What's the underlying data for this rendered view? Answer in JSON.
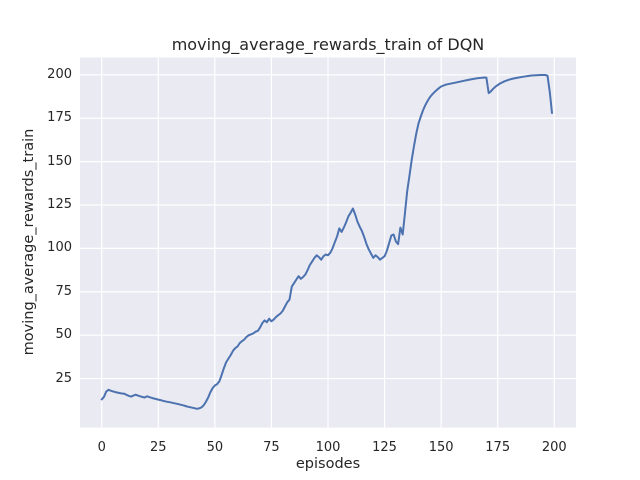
{
  "chart_data": {
    "type": "line",
    "title": "moving_average_rewards_train of DQN",
    "xlabel": "episodes",
    "ylabel": "moving_average_rewards_train",
    "xlim": [
      -9.6,
      209.6
    ],
    "ylim": [
      -3.2,
      210
    ],
    "xticks": [
      0,
      25,
      50,
      75,
      100,
      125,
      150,
      175,
      200
    ],
    "yticks": [
      25,
      50,
      75,
      100,
      125,
      150,
      175,
      200
    ],
    "grid": true,
    "legend": "none",
    "colors": {
      "line": "#4C72B0",
      "axes_background": "#EAEAF2",
      "grid": "#FFFFFF",
      "figure_background": "#FFFFFF",
      "text": "#262626"
    },
    "series": [
      {
        "name": "moving_average_rewards_train",
        "points": [
          [
            0,
            13
          ],
          [
            1,
            14.5
          ],
          [
            2,
            17.5
          ],
          [
            3,
            18.5
          ],
          [
            4,
            18
          ],
          [
            5,
            17.6
          ],
          [
            6,
            17.2
          ],
          [
            7,
            16.9
          ],
          [
            8,
            16.6
          ],
          [
            9,
            16.4
          ],
          [
            10,
            16.2
          ],
          [
            11,
            15.6
          ],
          [
            12,
            15
          ],
          [
            13,
            14.6
          ],
          [
            14,
            15.2
          ],
          [
            15,
            15.7
          ],
          [
            16,
            15.2
          ],
          [
            17,
            14.8
          ],
          [
            18,
            14.4
          ],
          [
            19,
            14.1
          ],
          [
            20,
            14.8
          ],
          [
            21,
            14.3
          ],
          [
            22,
            13.9
          ],
          [
            23,
            13.5
          ],
          [
            24,
            13.2
          ],
          [
            25,
            12.9
          ],
          [
            26,
            12.6
          ],
          [
            27,
            12.2
          ],
          [
            28,
            11.9
          ],
          [
            29,
            11.6
          ],
          [
            30,
            11.4
          ],
          [
            31,
            11.1
          ],
          [
            32,
            10.8
          ],
          [
            33,
            10.5
          ],
          [
            34,
            10.2
          ],
          [
            35,
            9.9
          ],
          [
            36,
            9.6
          ],
          [
            37,
            9.2
          ],
          [
            38,
            8.8
          ],
          [
            39,
            8.5
          ],
          [
            40,
            8.2
          ],
          [
            41,
            7.9
          ],
          [
            42,
            7.6
          ],
          [
            43,
            7.8
          ],
          [
            44,
            8.3
          ],
          [
            45,
            9.5
          ],
          [
            46,
            11.5
          ],
          [
            47,
            14
          ],
          [
            48,
            17
          ],
          [
            49,
            19.5
          ],
          [
            50,
            21
          ],
          [
            51,
            21.8
          ],
          [
            52,
            23.5
          ],
          [
            53,
            27
          ],
          [
            54,
            31
          ],
          [
            55,
            34.5
          ],
          [
            56,
            36.5
          ],
          [
            57,
            38.5
          ],
          [
            58,
            41
          ],
          [
            59,
            42.5
          ],
          [
            60,
            43.5
          ],
          [
            61,
            45.5
          ],
          [
            62,
            46.5
          ],
          [
            63,
            47.5
          ],
          [
            64,
            49
          ],
          [
            65,
            50
          ],
          [
            66,
            50.5
          ],
          [
            67,
            51
          ],
          [
            68,
            52
          ],
          [
            69,
            52.5
          ],
          [
            70,
            54.5
          ],
          [
            71,
            57
          ],
          [
            72,
            58.5
          ],
          [
            73,
            57.5
          ],
          [
            74,
            59.5
          ],
          [
            75,
            58
          ],
          [
            76,
            59
          ],
          [
            77,
            60.5
          ],
          [
            78,
            61.5
          ],
          [
            79,
            62.5
          ],
          [
            80,
            64
          ],
          [
            81,
            66.5
          ],
          [
            82,
            69
          ],
          [
            83,
            70.5
          ],
          [
            84,
            78
          ],
          [
            85,
            80
          ],
          [
            86,
            82
          ],
          [
            87,
            84
          ],
          [
            88,
            82.5
          ],
          [
            89,
            83.5
          ],
          [
            90,
            85
          ],
          [
            91,
            87.5
          ],
          [
            92,
            90.5
          ],
          [
            93,
            92.5
          ],
          [
            94,
            94.5
          ],
          [
            95,
            96
          ],
          [
            96,
            95
          ],
          [
            97,
            93.5
          ],
          [
            98,
            95.5
          ],
          [
            99,
            96.5
          ],
          [
            100,
            96
          ],
          [
            101,
            97.5
          ],
          [
            102,
            100
          ],
          [
            103,
            103.5
          ],
          [
            104,
            107
          ],
          [
            105,
            111.5
          ],
          [
            106,
            109.5
          ],
          [
            107,
            112
          ],
          [
            108,
            115
          ],
          [
            109,
            118.5
          ],
          [
            110,
            120.5
          ],
          [
            111,
            123
          ],
          [
            112,
            119.5
          ],
          [
            113,
            115.5
          ],
          [
            114,
            112.5
          ],
          [
            115,
            110
          ],
          [
            116,
            106.5
          ],
          [
            117,
            102.5
          ],
          [
            118,
            99.5
          ],
          [
            119,
            97
          ],
          [
            120,
            94.5
          ],
          [
            121,
            96
          ],
          [
            122,
            95
          ],
          [
            123,
            93.5
          ],
          [
            124,
            94.5
          ],
          [
            125,
            95.5
          ],
          [
            126,
            98.5
          ],
          [
            127,
            103
          ],
          [
            128,
            107.5
          ],
          [
            129,
            108
          ],
          [
            130,
            104
          ],
          [
            131,
            102.5
          ],
          [
            132,
            112
          ],
          [
            133,
            108
          ],
          [
            134,
            120
          ],
          [
            135,
            133
          ],
          [
            136,
            142
          ],
          [
            137,
            151
          ],
          [
            138,
            159
          ],
          [
            139,
            166
          ],
          [
            140,
            172
          ],
          [
            141,
            176
          ],
          [
            142,
            179.5
          ],
          [
            143,
            182.5
          ],
          [
            144,
            185
          ],
          [
            145,
            187
          ],
          [
            146,
            188.7
          ],
          [
            147,
            190
          ],
          [
            148,
            191.2
          ],
          [
            149,
            192.3
          ],
          [
            150,
            193.3
          ],
          [
            152,
            194.3
          ],
          [
            154,
            194.9
          ],
          [
            156,
            195.4
          ],
          [
            158,
            196
          ],
          [
            160,
            196.6
          ],
          [
            162,
            197.1
          ],
          [
            164,
            197.6
          ],
          [
            166,
            198
          ],
          [
            168,
            198.3
          ],
          [
            169,
            198.5
          ],
          [
            170,
            198.4
          ],
          [
            171,
            189.5
          ],
          [
            172,
            190.5
          ],
          [
            173,
            192
          ],
          [
            174,
            193.2
          ],
          [
            176,
            195
          ],
          [
            178,
            196.3
          ],
          [
            180,
            197.2
          ],
          [
            182,
            197.9
          ],
          [
            184,
            198.4
          ],
          [
            186,
            198.9
          ],
          [
            188,
            199.3
          ],
          [
            190,
            199.6
          ],
          [
            192,
            199.8
          ],
          [
            194,
            199.9
          ],
          [
            196,
            199.9
          ],
          [
            197,
            199.5
          ],
          [
            198,
            190
          ],
          [
            199,
            178
          ]
        ]
      }
    ]
  }
}
